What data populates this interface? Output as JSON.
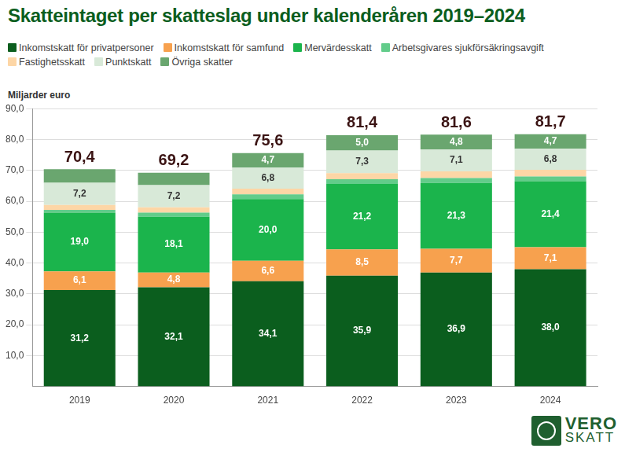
{
  "chart_data": {
    "type": "bar",
    "title": "Skatteintaget per skatteslag under kalenderåren 2019–2024",
    "y_label": "Miljarder euro",
    "categories": [
      "2019",
      "2020",
      "2021",
      "2022",
      "2023",
      "2024"
    ],
    "stacked": true,
    "grid": true,
    "legend": "top-left",
    "ylim": [
      0,
      90
    ],
    "yticks": [
      {
        "value": 10,
        "label": "10,0"
      },
      {
        "value": 20,
        "label": "20,0"
      },
      {
        "value": 30,
        "label": "30,0"
      },
      {
        "value": 40,
        "label": "40,0"
      },
      {
        "value": 50,
        "label": "50,0"
      },
      {
        "value": 60,
        "label": "60,0"
      },
      {
        "value": 70,
        "label": "70,0"
      },
      {
        "value": 80,
        "label": "80,0"
      },
      {
        "value": 90,
        "label": "90,0"
      }
    ],
    "series": [
      {
        "name": "Inkomstskatt för privatpersoner",
        "color": "#0b5e1e",
        "data_labels": true,
        "values": [
          31.2,
          32.1,
          34.1,
          35.9,
          36.9,
          38.0
        ],
        "value_labels": [
          "31,2",
          "32,1",
          "34,1",
          "35,9",
          "36,9",
          "38,0"
        ]
      },
      {
        "name": "Inkomstskatt för samfund",
        "color": "#f7a14e",
        "data_labels": true,
        "values": [
          6.1,
          4.8,
          6.6,
          8.5,
          7.7,
          7.1
        ],
        "value_labels": [
          "6,1",
          "4,8",
          "6,6",
          "8,5",
          "7,7",
          "7,1"
        ]
      },
      {
        "name": "Mervärdesskatt",
        "color": "#1bb44c",
        "data_labels": true,
        "values": [
          19.0,
          18.1,
          20.0,
          21.2,
          21.3,
          21.4
        ],
        "value_labels": [
          "19,0",
          "18,1",
          "20,0",
          "21,2",
          "21,3",
          "21,4"
        ]
      },
      {
        "name": "Arbetsgivares sjukförsäkringsavgift",
        "color": "#62cc8a",
        "data_labels": false,
        "values": [
          0.9,
          1.3,
          1.5,
          1.5,
          1.6,
          1.5
        ]
      },
      {
        "name": "Fastighetsskatt",
        "color": "#fdd6a6",
        "data_labels": false,
        "values": [
          1.6,
          1.7,
          1.9,
          2.0,
          2.2,
          2.2
        ]
      },
      {
        "name": "Punktskatt",
        "color": "#d8e9d8",
        "data_labels": true,
        "values": [
          7.2,
          7.2,
          6.8,
          7.3,
          7.1,
          6.8
        ],
        "value_labels": [
          "7,2",
          "7,2",
          "6,8",
          "7,3",
          "7,1",
          "6,8"
        ]
      },
      {
        "name": "Övriga skatter",
        "color": "#6aa66f",
        "data_labels": true,
        "values": [
          4.4,
          4.0,
          4.7,
          5.0,
          4.8,
          4.7
        ],
        "value_labels": [
          null,
          null,
          "4,7",
          "5,0",
          "4,8",
          "4,7"
        ]
      }
    ],
    "totals": [
      70.4,
      69.2,
      75.6,
      81.4,
      81.6,
      81.7
    ],
    "total_labels": [
      "70,4",
      "69,2",
      "75,6",
      "81,4",
      "81,6",
      "81,7"
    ],
    "annotations": [
      "VERO",
      "SKATT"
    ]
  }
}
